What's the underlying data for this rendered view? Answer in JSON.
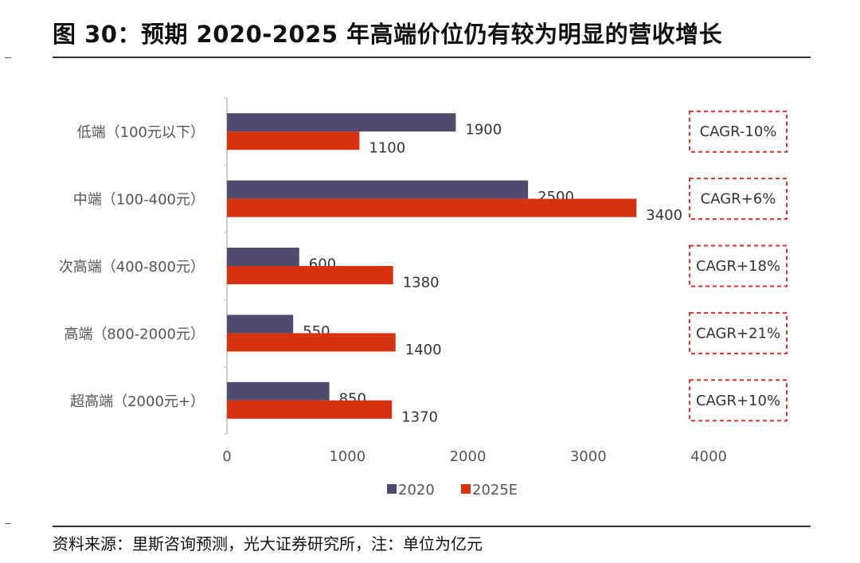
{
  "header": {
    "title": "图 30：预期 2020-2025 年高端价位仍有较为明显的营收增长"
  },
  "footer": {
    "source": "资料来源：里斯咨询预测，光大证券研究所，注：单位为亿元"
  },
  "colors": {
    "series_2020": "#4f4a6e",
    "series_2025E": "#d6320f",
    "cagr_border": "#d93030",
    "axis": "#bfbfbf"
  },
  "chart_data": {
    "type": "bar",
    "orientation": "horizontal",
    "categories": [
      "低端（100元以下）",
      "中端（100-400元）",
      "次高端（400-800元）",
      "高端（800-2000元）",
      "超高端（2000元+）"
    ],
    "series": [
      {
        "name": "2020",
        "values": [
          1900,
          2500,
          600,
          550,
          850
        ]
      },
      {
        "name": "2025E",
        "values": [
          1100,
          3400,
          1380,
          1400,
          1370
        ]
      }
    ],
    "xlim": [
      0,
      4000
    ],
    "x_ticks": [
      "0",
      "1000",
      "2000",
      "3000",
      "4000"
    ],
    "legend_position": "bottom",
    "grid": false,
    "annotations": [
      "CAGR-10%",
      "CAGR+6%",
      "CAGR+18%",
      "CAGR+21%",
      "CAGR+10%"
    ]
  }
}
